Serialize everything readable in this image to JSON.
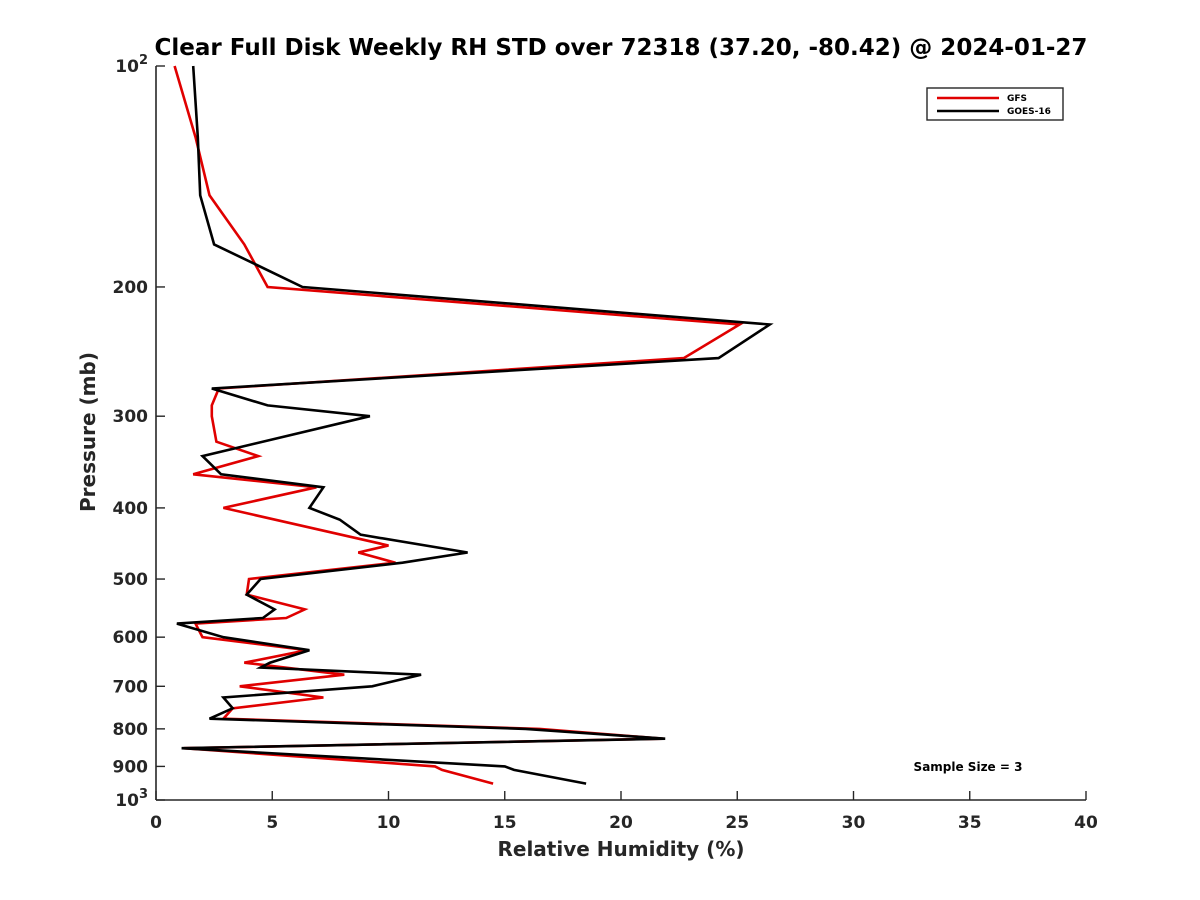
{
  "chart_data": {
    "type": "line",
    "title": "Clear Full Disk Weekly RH STD over 72318 (37.20, -80.42) @ 2024-01-27",
    "xlabel": "Relative Humidity (%)",
    "ylabel": "Pressure (mb)",
    "xlim": [
      0,
      40
    ],
    "ylim": [
      100,
      1000
    ],
    "y_scale": "log",
    "y_reversed": true,
    "x_ticks": [
      "0",
      "5",
      "10",
      "15",
      "20",
      "25",
      "30",
      "35",
      "40"
    ],
    "y_ticks": [
      {
        "value": 100,
        "base": "10",
        "exp": "2"
      },
      {
        "value": 200,
        "label": "200"
      },
      {
        "value": 300,
        "label": "300"
      },
      {
        "value": 400,
        "label": "400"
      },
      {
        "value": 500,
        "label": "500"
      },
      {
        "value": 600,
        "label": "600"
      },
      {
        "value": 700,
        "label": "700"
      },
      {
        "value": 800,
        "label": "800"
      },
      {
        "value": 900,
        "label": "900"
      },
      {
        "value": 1000,
        "base": "10",
        "exp": "3"
      }
    ],
    "legend_position": "top-right",
    "annotation": "Sample Size = 3",
    "series": [
      {
        "name": "GFS",
        "color": "#e00000",
        "points": [
          [
            0.8,
            100
          ],
          [
            1.7,
            125
          ],
          [
            2.3,
            150
          ],
          [
            3.8,
            175
          ],
          [
            4.8,
            200
          ],
          [
            25.1,
            225
          ],
          [
            22.7,
            250
          ],
          [
            2.7,
            275
          ],
          [
            2.4,
            290
          ],
          [
            2.4,
            300
          ],
          [
            2.6,
            325
          ],
          [
            4.4,
            340
          ],
          [
            1.6,
            360
          ],
          [
            6.9,
            375
          ],
          [
            2.9,
            400
          ],
          [
            10.0,
            450
          ],
          [
            8.7,
            460
          ],
          [
            10.3,
            475
          ],
          [
            4.0,
            500
          ],
          [
            3.9,
            525
          ],
          [
            6.4,
            550
          ],
          [
            5.6,
            565
          ],
          [
            1.7,
            575
          ],
          [
            2.0,
            600
          ],
          [
            6.5,
            625
          ],
          [
            3.8,
            650
          ],
          [
            8.1,
            675
          ],
          [
            3.6,
            700
          ],
          [
            7.2,
            725
          ],
          [
            3.3,
            750
          ],
          [
            2.9,
            775
          ],
          [
            16.5,
            800
          ],
          [
            21.8,
            825
          ],
          [
            1.2,
            850
          ],
          [
            12.0,
            900
          ],
          [
            12.3,
            910
          ],
          [
            14.5,
            950
          ]
        ]
      },
      {
        "name": "GOES-16",
        "color": "#000000",
        "points": [
          [
            1.6,
            100
          ],
          [
            1.8,
            125
          ],
          [
            1.9,
            150
          ],
          [
            2.5,
            175
          ],
          [
            6.3,
            200
          ],
          [
            26.4,
            225
          ],
          [
            24.2,
            250
          ],
          [
            2.4,
            275
          ],
          [
            4.8,
            290
          ],
          [
            9.2,
            300
          ],
          [
            2.0,
            340
          ],
          [
            2.8,
            360
          ],
          [
            7.2,
            375
          ],
          [
            6.6,
            400
          ],
          [
            7.9,
            415
          ],
          [
            8.8,
            435
          ],
          [
            13.4,
            460
          ],
          [
            10.6,
            475
          ],
          [
            4.5,
            500
          ],
          [
            3.9,
            525
          ],
          [
            5.1,
            550
          ],
          [
            4.6,
            565
          ],
          [
            0.9,
            575
          ],
          [
            2.9,
            600
          ],
          [
            6.6,
            625
          ],
          [
            4.9,
            650
          ],
          [
            4.5,
            660
          ],
          [
            11.4,
            675
          ],
          [
            9.3,
            700
          ],
          [
            2.9,
            725
          ],
          [
            3.3,
            750
          ],
          [
            2.3,
            775
          ],
          [
            15.9,
            800
          ],
          [
            21.9,
            825
          ],
          [
            1.1,
            850
          ],
          [
            15.0,
            900
          ],
          [
            15.4,
            910
          ],
          [
            18.5,
            950
          ]
        ]
      }
    ]
  }
}
